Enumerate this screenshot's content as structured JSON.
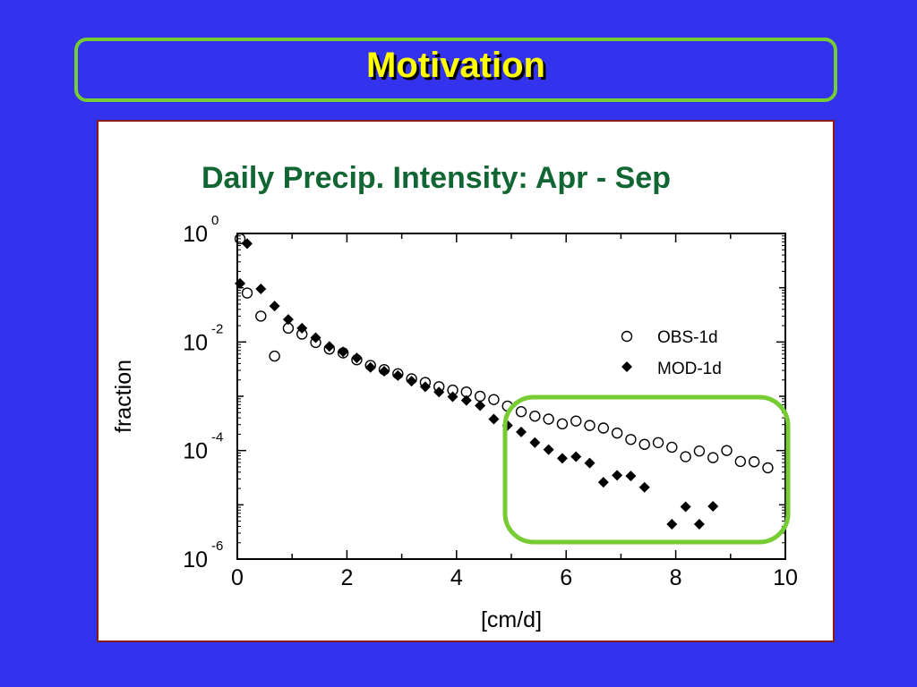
{
  "slide": {
    "title": "Motivation"
  },
  "chart_data": {
    "type": "scatter",
    "title": "Daily Precip. Intensity:  Apr - Sep",
    "xlabel": "[cm/d]",
    "ylabel": "fraction",
    "xlim": [
      0,
      10
    ],
    "ylim": [
      1e-06,
      1
    ],
    "yscale": "log",
    "x_ticks": [
      "0",
      "2",
      "4",
      "6",
      "8",
      "10"
    ],
    "y_ticks": [
      {
        "base": "10",
        "exp": "0"
      },
      {
        "base": "10",
        "exp": "-2"
      },
      {
        "base": "10",
        "exp": "-4"
      },
      {
        "base": "10",
        "exp": "-6"
      }
    ],
    "legend_placement": "right-center",
    "highlight_color": "#77cc33",
    "series": [
      {
        "name": "OBS-1d",
        "marker": "open-circle",
        "x": [
          0.05,
          0.18,
          0.43,
          0.68,
          0.93,
          1.18,
          1.43,
          1.68,
          1.93,
          2.18,
          2.43,
          2.68,
          2.93,
          3.18,
          3.43,
          3.68,
          3.93,
          4.18,
          4.43,
          4.68,
          4.93,
          5.18,
          5.43,
          5.68,
          5.93,
          6.18,
          6.43,
          6.68,
          6.93,
          7.18,
          7.43,
          7.68,
          7.93,
          8.18,
          8.43,
          8.68,
          8.93,
          9.18,
          9.43,
          9.68
        ],
        "y": [
          0.8,
          0.08,
          0.03,
          0.0055,
          0.018,
          0.014,
          0.0098,
          0.0074,
          0.0063,
          0.0047,
          0.0037,
          0.0031,
          0.0026,
          0.0021,
          0.0018,
          0.0015,
          0.0013,
          0.0012,
          0.001,
          0.00087,
          0.00066,
          0.00052,
          0.00043,
          0.00038,
          0.00031,
          0.00035,
          0.00029,
          0.00026,
          0.00021,
          0.00016,
          0.00013,
          0.00014,
          0.000115,
          7.7e-05,
          9.8e-05,
          7.4e-05,
          0.0001,
          6.3e-05,
          6.2e-05,
          4.8e-05
        ]
      },
      {
        "name": "MOD-1d",
        "marker": "filled-diamond",
        "x": [
          0.05,
          0.18,
          0.43,
          0.68,
          0.93,
          1.18,
          1.43,
          1.68,
          1.93,
          2.18,
          2.43,
          2.68,
          2.93,
          3.18,
          3.43,
          3.68,
          3.93,
          4.18,
          4.43,
          4.68,
          4.93,
          5.18,
          5.43,
          5.68,
          5.93,
          6.18,
          6.43,
          6.68,
          6.93,
          7.18,
          7.43,
          7.68,
          7.93,
          8.18,
          8.43,
          8.68
        ],
        "y": [
          0.12,
          0.65,
          0.095,
          0.046,
          0.026,
          0.018,
          0.012,
          0.0083,
          0.0066,
          0.0051,
          0.0034,
          0.0029,
          0.0024,
          0.0019,
          0.0015,
          0.0012,
          0.00098,
          0.00084,
          0.00067,
          0.00038,
          0.00029,
          0.00022,
          0.00014,
          0.000104,
          7.2e-05,
          7.7e-05,
          5.9e-05,
          2.6e-05,
          3.5e-05,
          3.4e-05,
          2.1e-05,
          null,
          4.4e-06,
          9.2e-06,
          4.4e-06,
          9.4e-06
        ]
      }
    ]
  }
}
